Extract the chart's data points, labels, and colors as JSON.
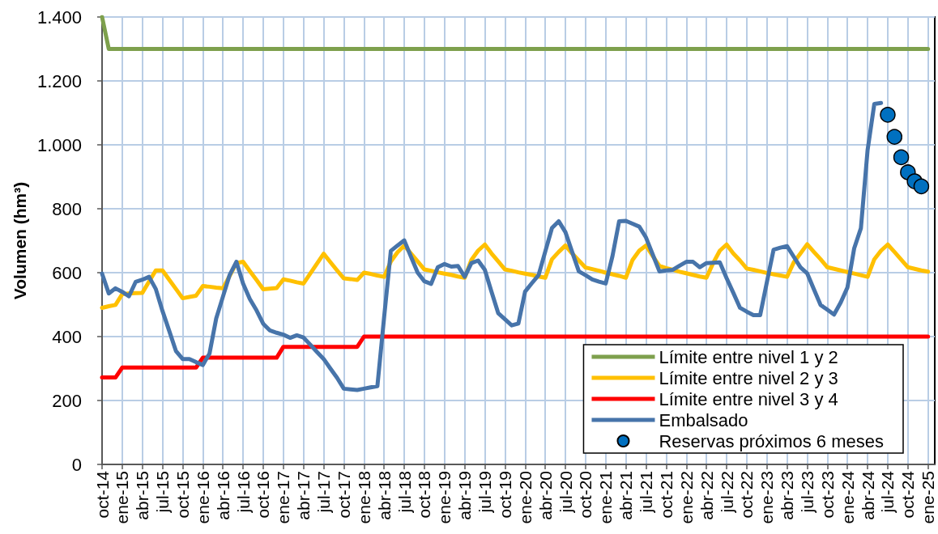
{
  "chart_data": {
    "type": "line",
    "ylabel": "Volumen (hm³)",
    "categories": [
      "oct-14",
      null,
      null,
      "ene-15",
      null,
      null,
      "abr-15",
      null,
      null,
      "jul-15",
      null,
      null,
      "oct-15",
      null,
      null,
      "ene-16",
      null,
      null,
      "abr-16",
      null,
      null,
      "jul-16",
      null,
      null,
      "oct-16",
      null,
      null,
      "ene-17",
      null,
      null,
      "abr-17",
      null,
      null,
      "jul-17",
      null,
      null,
      "oct-17",
      null,
      null,
      "ene-18",
      null,
      null,
      "abr-18",
      null,
      null,
      "jul-18",
      null,
      null,
      "oct-18",
      null,
      null,
      "ene-19",
      null,
      null,
      "abr-19",
      null,
      null,
      "jul-19",
      null,
      null,
      "oct-19",
      null,
      null,
      "ene-20",
      null,
      null,
      "abr-20",
      null,
      null,
      "jul-20",
      null,
      null,
      "oct-20",
      null,
      null,
      "ene-21",
      null,
      null,
      "abr-21",
      null,
      null,
      "jul-21",
      null,
      null,
      "oct-21",
      null,
      null,
      "ene-22",
      null,
      null,
      "abr-22",
      null,
      null,
      "jul-22",
      null,
      null,
      "oct-22",
      null,
      null,
      "ene-23",
      null,
      null,
      "abr-23",
      null,
      null,
      "jul-23",
      null,
      null,
      "oct-23",
      null,
      null,
      "ene-24",
      null,
      null,
      "abr-24",
      null,
      null,
      "jul-24",
      null,
      null,
      "oct-24",
      null,
      null,
      "ene-25",
      null
    ],
    "series": [
      {
        "name": "Límite entre nivel 1 y 2",
        "color": "#7ea04d",
        "values": [
          1400,
          1300,
          1300,
          1300,
          1300,
          1300,
          1300,
          1300,
          1300,
          1300,
          1300,
          1300,
          1300,
          1300,
          1300,
          1300,
          1300,
          1300,
          1300,
          1300,
          1300,
          1300,
          1300,
          1300,
          1300,
          1300,
          1300,
          1300,
          1300,
          1300,
          1300,
          1300,
          1300,
          1300,
          1300,
          1300,
          1300,
          1300,
          1300,
          1300,
          1300,
          1300,
          1300,
          1300,
          1300,
          1300,
          1300,
          1300,
          1300,
          1300,
          1300,
          1300,
          1300,
          1300,
          1300,
          1300,
          1300,
          1300,
          1300,
          1300,
          1300,
          1300,
          1300,
          1300,
          1300,
          1300,
          1300,
          1300,
          1300,
          1300,
          1300,
          1300,
          1300,
          1300,
          1300,
          1300,
          1300,
          1300,
          1300,
          1300,
          1300,
          1300,
          1300,
          1300,
          1300,
          1300,
          1300,
          1300,
          1300,
          1300,
          1300,
          1300,
          1300,
          1300,
          1300,
          1300,
          1300,
          1300,
          1300,
          1300,
          1300,
          1300,
          1300,
          1300,
          1300,
          1300,
          1300,
          1300,
          1300,
          1300,
          1300,
          1300,
          1300,
          1300,
          1300,
          1300,
          1300,
          1300,
          1300,
          1300,
          1300,
          1300,
          1300,
          1300,
          null
        ]
      },
      {
        "name": "Límite entre nivel 2 y 3",
        "color": "#ffc000",
        "values": [
          490,
          495,
          499,
          533,
          535,
          536,
          537,
          572,
          607,
          607,
          578,
          549,
          520,
          524,
          528,
          558,
          556,
          553,
          551,
          590,
          630,
          634,
          605,
          577,
          548,
          550,
          552,
          579,
          575,
          570,
          566,
          597,
          628,
          659,
          633,
          607,
          582,
          580,
          577,
          600,
          596,
          591,
          587,
          635,
          664,
          685,
          660,
          635,
          610,
          606,
          601,
          597,
          593,
          588,
          584,
          640,
          669,
          688,
          660,
          635,
          610,
          606,
          601,
          597,
          593,
          588,
          584,
          642,
          665,
          685,
          660,
          638,
          616,
          611,
          606,
          600,
          595,
          590,
          584,
          640,
          669,
          685,
          652,
          621,
          614,
          609,
          603,
          598,
          593,
          588,
          584,
          630,
          669,
          688,
          660,
          638,
          613,
          609,
          604,
          599,
          595,
          591,
          587,
          632,
          660,
          689,
          665,
          642,
          617,
          612,
          607,
          602,
          597,
          592,
          587,
          642,
          669,
          688,
          665,
          641,
          617,
          612,
          607,
          603,
          null
        ]
      },
      {
        "name": "Límite entre nivel 3 y 4",
        "color": "#ff0000",
        "values": [
          272,
          272,
          272,
          303,
          303,
          303,
          303,
          303,
          303,
          303,
          303,
          303,
          303,
          303,
          303,
          334,
          334,
          334,
          334,
          334,
          334,
          334,
          334,
          334,
          334,
          334,
          334,
          368,
          368,
          368,
          368,
          368,
          368,
          368,
          368,
          368,
          368,
          368,
          368,
          400,
          400,
          400,
          400,
          400,
          400,
          400,
          400,
          400,
          400,
          400,
          400,
          400,
          400,
          400,
          400,
          400,
          400,
          400,
          400,
          400,
          400,
          400,
          400,
          400,
          400,
          400,
          400,
          400,
          400,
          400,
          400,
          400,
          400,
          400,
          400,
          400,
          400,
          400,
          400,
          400,
          400,
          400,
          400,
          400,
          400,
          400,
          400,
          400,
          400,
          400,
          400,
          400,
          400,
          400,
          400,
          400,
          400,
          400,
          400,
          400,
          400,
          400,
          400,
          400,
          400,
          400,
          400,
          400,
          400,
          400,
          400,
          400,
          400,
          400,
          400,
          400,
          400,
          400,
          400,
          400,
          400,
          400,
          400,
          400,
          null
        ]
      },
      {
        "name": "Embalsado",
        "color": "#4774aa",
        "values": [
          597,
          535,
          551,
          540,
          526,
          571,
          578,
          587,
          549,
          480,
          418,
          355,
          330,
          330,
          320,
          311,
          347,
          457,
          525,
          593,
          634,
          566,
          518,
          482,
          440,
          419,
          412,
          406,
          396,
          404,
          397,
          375,
          352,
          330,
          300,
          271,
          237,
          235,
          233,
          237,
          241,
          245,
          460,
          668,
          685,
          701,
          650,
          600,
          573,
          565,
          617,
          627,
          619,
          621,
          587,
          630,
          638,
          609,
          540,
          473,
          454,
          435,
          441,
          541,
          567,
          592,
          666,
          740,
          761,
          727,
          665,
          604,
          592,
          579,
          572,
          566,
          651,
          761,
          762,
          753,
          744,
          710,
          657,
          604,
          607,
          609,
          622,
          634,
          634,
          617,
          630,
          631,
          632,
          583,
          537,
          490,
          478,
          467,
          467,
          570,
          672,
          678,
          683,
          650,
          617,
          598,
          548,
          499,
          484,
          469,
          507,
          554,
          676,
          739,
          984,
          1128,
          1131,
          null,
          null,
          null,
          null,
          null,
          null,
          null,
          null
        ]
      },
      {
        "name": "Reservas próximos 6 meses",
        "type": "scatter",
        "marker": "circle",
        "color": "#0070c0",
        "values": [
          null,
          null,
          null,
          null,
          null,
          null,
          null,
          null,
          null,
          null,
          null,
          null,
          null,
          null,
          null,
          null,
          null,
          null,
          null,
          null,
          null,
          null,
          null,
          null,
          null,
          null,
          null,
          null,
          null,
          null,
          null,
          null,
          null,
          null,
          null,
          null,
          null,
          null,
          null,
          null,
          null,
          null,
          null,
          null,
          null,
          null,
          null,
          null,
          null,
          null,
          null,
          null,
          null,
          null,
          null,
          null,
          null,
          null,
          null,
          null,
          null,
          null,
          null,
          null,
          null,
          null,
          null,
          null,
          null,
          null,
          null,
          null,
          null,
          null,
          null,
          null,
          null,
          null,
          null,
          null,
          null,
          null,
          null,
          null,
          null,
          null,
          null,
          null,
          null,
          null,
          null,
          null,
          null,
          null,
          null,
          null,
          null,
          null,
          null,
          null,
          null,
          null,
          null,
          null,
          null,
          null,
          null,
          null,
          null,
          null,
          null,
          null,
          null,
          null,
          null,
          null,
          null,
          1094,
          1025,
          961,
          914,
          886,
          870,
          null,
          null
        ]
      }
    ],
    "ylim": [
      0,
      1400
    ],
    "yticks": [
      0,
      200,
      400,
      600,
      800,
      {
        "value": 1000,
        "label": "1.000"
      },
      {
        "value": 1200,
        "label": "1.200"
      },
      {
        "value": 1400,
        "label": "1.400"
      }
    ],
    "grid": true,
    "legend": "bottom right"
  }
}
